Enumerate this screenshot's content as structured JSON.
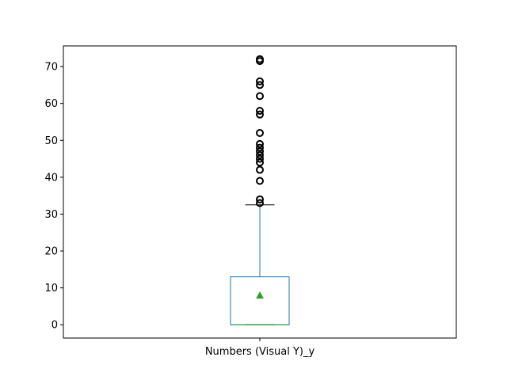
{
  "chart_data": {
    "type": "box",
    "title": "",
    "xlabel": "",
    "ylabel": "",
    "categories": [
      "Numbers (Visual Y)_y"
    ],
    "ylim": [
      -3.6,
      75.6
    ],
    "y_ticks": [
      0,
      10,
      20,
      30,
      40,
      50,
      60,
      70
    ],
    "grid": false,
    "box": {
      "min": 0,
      "q1": 0,
      "median": 0,
      "q3": 13,
      "whisker_low": 0,
      "whisker_high": 32.5,
      "mean": 8
    },
    "outliers": [
      33,
      34,
      39,
      42,
      44,
      45,
      46,
      47,
      48,
      49,
      52,
      57,
      58,
      62,
      65,
      66,
      71.5,
      72
    ],
    "colors": {
      "box": "#1f77b4",
      "whisker": "#1f77b4",
      "cap": "#000000",
      "median": "#2ca02c",
      "mean_marker": "#2ca02c",
      "outlier": "#000000"
    }
  }
}
